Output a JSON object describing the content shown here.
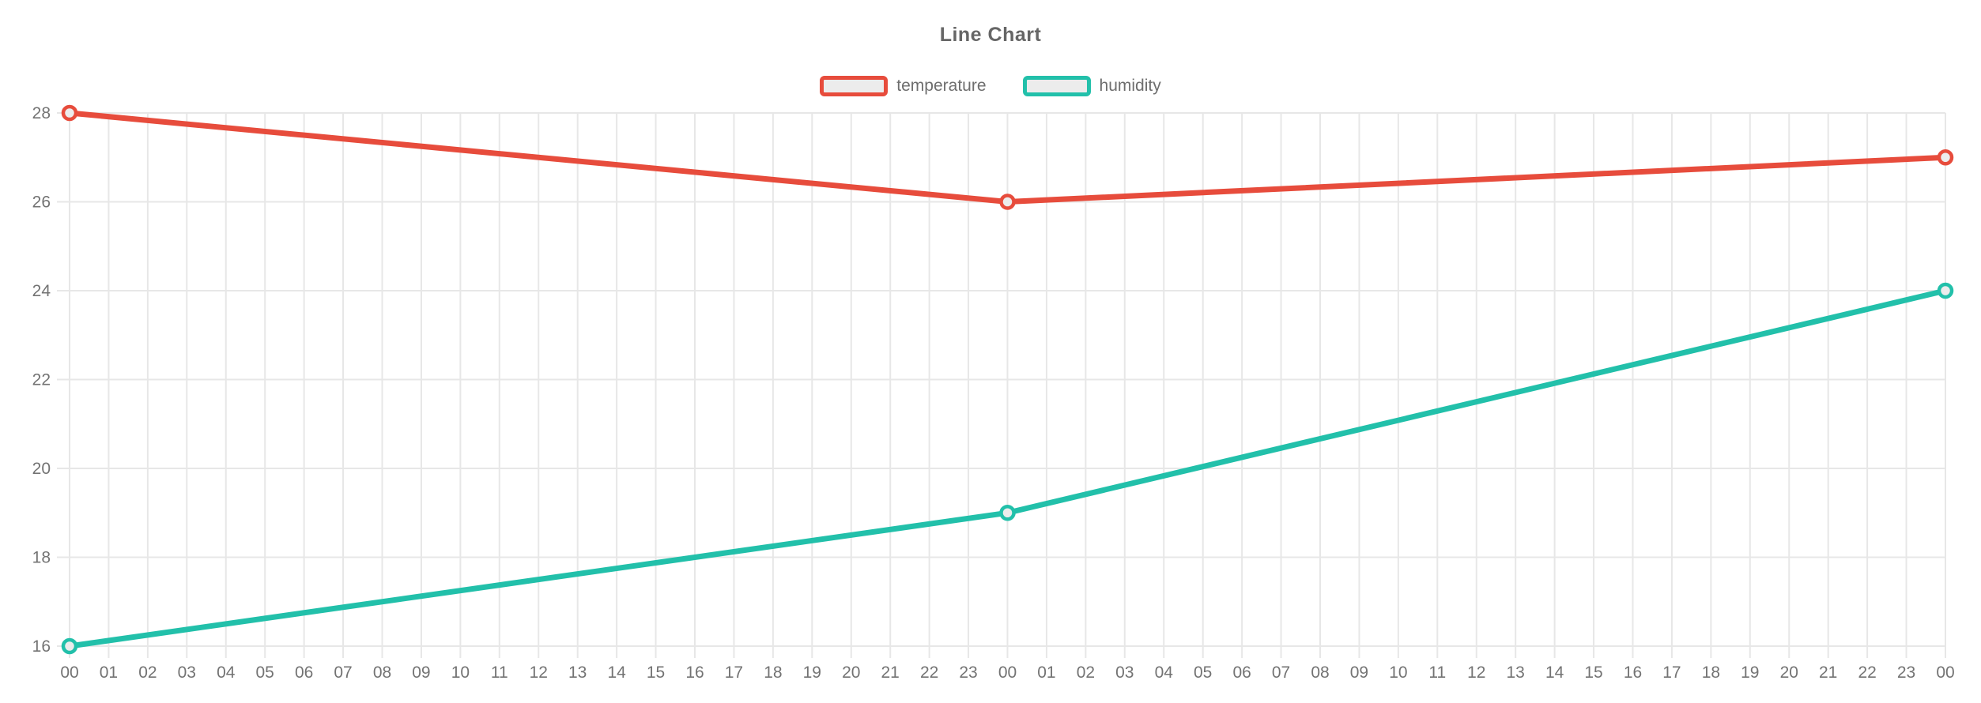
{
  "chart_data": {
    "type": "line",
    "title": "Line Chart",
    "legend_position": "top",
    "grid": true,
    "x_labels": [
      "00",
      "01",
      "02",
      "03",
      "04",
      "05",
      "06",
      "07",
      "08",
      "09",
      "10",
      "11",
      "12",
      "13",
      "14",
      "15",
      "16",
      "17",
      "18",
      "19",
      "20",
      "21",
      "22",
      "23",
      "00",
      "01",
      "02",
      "03",
      "04",
      "05",
      "06",
      "07",
      "08",
      "09",
      "10",
      "11",
      "12",
      "13",
      "14",
      "15",
      "16",
      "17",
      "18",
      "19",
      "20",
      "21",
      "22",
      "23",
      "00"
    ],
    "y_ticks": [
      "28",
      "26",
      "24",
      "22",
      "20",
      "18",
      "16"
    ],
    "ylim": [
      16,
      28
    ],
    "series": [
      {
        "name": "temperature",
        "color": "#e74c3c",
        "point_fill": "#ececec",
        "points": [
          [
            0,
            28
          ],
          [
            24,
            26
          ],
          [
            48,
            27
          ]
        ]
      },
      {
        "name": "humidity",
        "color": "#22c0aa",
        "point_fill": "#ececec",
        "points": [
          [
            0,
            16
          ],
          [
            24,
            19
          ],
          [
            48,
            24
          ]
        ]
      }
    ],
    "colors": {
      "title": "#666666",
      "tick_label": "#737373",
      "legend_label": "#6e6e6e",
      "grid": "#e7e7e7"
    }
  }
}
